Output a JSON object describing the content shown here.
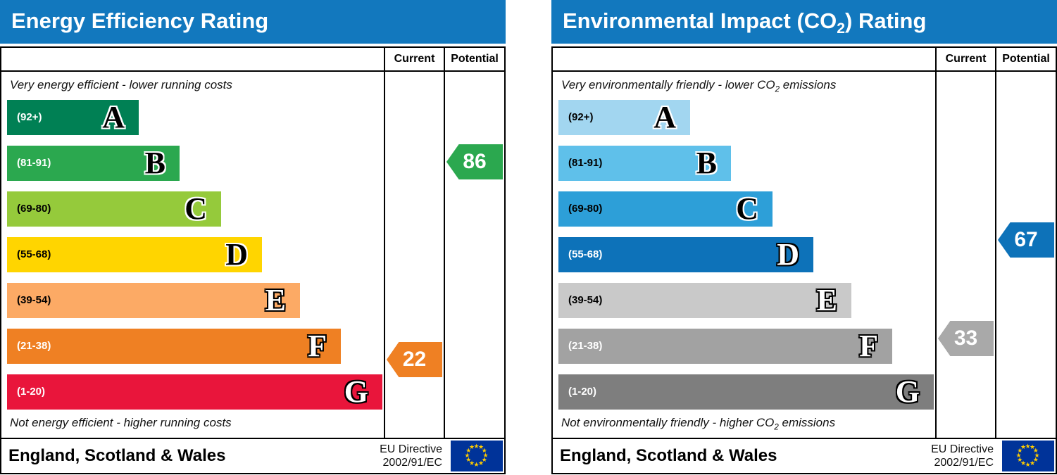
{
  "colors": {
    "header_bg": "#1278be",
    "header_text": "#ffffff",
    "border": "#000000",
    "flag_bg": "#003399",
    "flag_star": "#ffcc00"
  },
  "icons": {
    "star_glyph": "★"
  },
  "charts": [
    {
      "title": {
        "pre": "Energy Efficiency Rating",
        "sub": "",
        "post": ""
      },
      "columns": {
        "current": "Current",
        "potential": "Potential"
      },
      "top_note": {
        "pre": "Very energy efficient - lower running costs",
        "sub": "",
        "post": ""
      },
      "bottom_note": {
        "pre": "Not energy efficient - higher running costs",
        "sub": "",
        "post": ""
      },
      "bands": [
        {
          "letter": "A",
          "range": "(92+)",
          "min": 92,
          "max": 100,
          "width_pct": 35,
          "color": "#008054",
          "range_color": "#ffffff",
          "letter_color": "#000000",
          "letter_outline": "#ffffff"
        },
        {
          "letter": "B",
          "range": "(81-91)",
          "min": 81,
          "max": 91,
          "width_pct": 46,
          "color": "#2ba84f",
          "range_color": "#ffffff",
          "letter_color": "#000000",
          "letter_outline": "#ffffff"
        },
        {
          "letter": "C",
          "range": "(69-80)",
          "min": 69,
          "max": 80,
          "width_pct": 57,
          "color": "#95ca3b",
          "range_color": "#000000",
          "letter_color": "#000000",
          "letter_outline": "#ffffff"
        },
        {
          "letter": "D",
          "range": "(55-68)",
          "min": 55,
          "max": 68,
          "width_pct": 68,
          "color": "#ffd500",
          "range_color": "#000000",
          "letter_color": "#000000",
          "letter_outline": "#ffffff"
        },
        {
          "letter": "E",
          "range": "(39-54)",
          "min": 39,
          "max": 54,
          "width_pct": 78,
          "color": "#fcaa65",
          "range_color": "#000000",
          "letter_color": "#ffffff",
          "letter_outline": "#000000"
        },
        {
          "letter": "F",
          "range": "(21-38)",
          "min": 21,
          "max": 38,
          "width_pct": 89,
          "color": "#ef8023",
          "range_color": "#ffffff",
          "letter_color": "#ffffff",
          "letter_outline": "#000000"
        },
        {
          "letter": "G",
          "range": "(1-20)",
          "min": 1,
          "max": 20,
          "width_pct": 100,
          "color": "#e9153b",
          "range_color": "#ffffff",
          "letter_color": "#ffffff",
          "letter_outline": "#000000"
        }
      ],
      "current": {
        "value": 22,
        "color": "#ef8023",
        "text_color": "#ffffff"
      },
      "potential": {
        "value": 86,
        "color": "#2ba84f",
        "text_color": "#ffffff"
      },
      "footer": {
        "region": "England, Scotland & Wales",
        "directive_line1": "EU Directive",
        "directive_line2": "2002/91/EC"
      }
    },
    {
      "title": {
        "pre": "Environmental Impact (CO",
        "sub": "2",
        "post": ") Rating"
      },
      "columns": {
        "current": "Current",
        "potential": "Potential"
      },
      "top_note": {
        "pre": "Very environmentally friendly - lower CO",
        "sub": "2",
        "post": " emissions"
      },
      "bottom_note": {
        "pre": "Not environmentally friendly - higher CO",
        "sub": "2",
        "post": " emissions"
      },
      "bands": [
        {
          "letter": "A",
          "range": "(92+)",
          "min": 92,
          "max": 100,
          "width_pct": 35,
          "color": "#a2d6f0",
          "range_color": "#000000",
          "letter_color": "#000000",
          "letter_outline": "#ffffff"
        },
        {
          "letter": "B",
          "range": "(81-91)",
          "min": 81,
          "max": 91,
          "width_pct": 46,
          "color": "#5fc0ea",
          "range_color": "#000000",
          "letter_color": "#000000",
          "letter_outline": "#ffffff"
        },
        {
          "letter": "C",
          "range": "(69-80)",
          "min": 69,
          "max": 80,
          "width_pct": 57,
          "color": "#2d9fd8",
          "range_color": "#000000",
          "letter_color": "#000000",
          "letter_outline": "#ffffff"
        },
        {
          "letter": "D",
          "range": "(55-68)",
          "min": 55,
          "max": 68,
          "width_pct": 68,
          "color": "#0d72b9",
          "range_color": "#ffffff",
          "letter_color": "#ffffff",
          "letter_outline": "#000000"
        },
        {
          "letter": "E",
          "range": "(39-54)",
          "min": 39,
          "max": 54,
          "width_pct": 78,
          "color": "#c9c9c9",
          "range_color": "#000000",
          "letter_color": "#ffffff",
          "letter_outline": "#000000"
        },
        {
          "letter": "F",
          "range": "(21-38)",
          "min": 21,
          "max": 38,
          "width_pct": 89,
          "color": "#a2a2a2",
          "range_color": "#ffffff",
          "letter_color": "#ffffff",
          "letter_outline": "#000000"
        },
        {
          "letter": "G",
          "range": "(1-20)",
          "min": 1,
          "max": 20,
          "width_pct": 100,
          "color": "#7e7e7e",
          "range_color": "#ffffff",
          "letter_color": "#ffffff",
          "letter_outline": "#000000"
        }
      ],
      "current": {
        "value": 33,
        "color": "#a9a9a9",
        "text_color": "#ffffff"
      },
      "potential": {
        "value": 67,
        "color": "#0d72b9",
        "text_color": "#ffffff"
      },
      "footer": {
        "region": "England, Scotland & Wales",
        "directive_line1": "EU Directive",
        "directive_line2": "2002/91/EC"
      }
    }
  ],
  "chart_data": [
    {
      "type": "bar",
      "title": "Energy Efficiency Rating",
      "categories": [
        "A (92+)",
        "B (81-91)",
        "C (69-80)",
        "D (55-68)",
        "E (39-54)",
        "F (21-38)",
        "G (1-20)"
      ],
      "series": [
        {
          "name": "Current",
          "values": [
            22
          ]
        },
        {
          "name": "Potential",
          "values": [
            86
          ]
        }
      ],
      "current_rating": 22,
      "current_band": "F",
      "potential_rating": 86,
      "potential_band": "B",
      "scale_range": [
        1,
        100
      ],
      "annotations": [
        "Very energy efficient - lower running costs",
        "Not energy efficient - higher running costs",
        "England, Scotland & Wales",
        "EU Directive 2002/91/EC"
      ]
    },
    {
      "type": "bar",
      "title": "Environmental Impact (CO2) Rating",
      "categories": [
        "A (92+)",
        "B (81-91)",
        "C (69-80)",
        "D (55-68)",
        "E (39-54)",
        "F (21-38)",
        "G (1-20)"
      ],
      "series": [
        {
          "name": "Current",
          "values": [
            33
          ]
        },
        {
          "name": "Potential",
          "values": [
            67
          ]
        }
      ],
      "current_rating": 33,
      "current_band": "F",
      "potential_rating": 67,
      "potential_band": "D",
      "scale_range": [
        1,
        100
      ],
      "annotations": [
        "Very environmentally friendly - lower CO2 emissions",
        "Not environmentally friendly - higher CO2 emissions",
        "England, Scotland & Wales",
        "EU Directive 2002/91/EC"
      ]
    }
  ]
}
